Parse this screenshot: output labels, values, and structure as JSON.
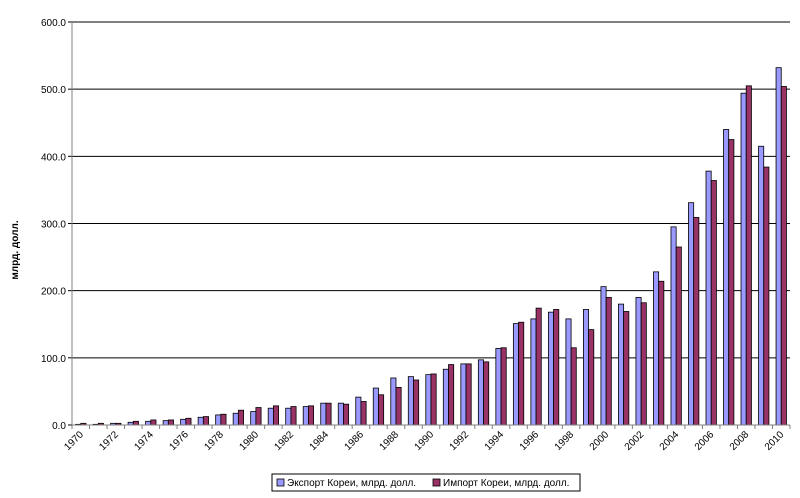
{
  "chart_data": {
    "type": "bar",
    "title": "",
    "xlabel": "",
    "ylabel": "млрд. долл.",
    "ylim": [
      0,
      600
    ],
    "yticks": [
      "0.0",
      "100.0",
      "200.0",
      "300.0",
      "400.0",
      "500.0",
      "600.0"
    ],
    "grid": true,
    "legend_position": "bottom",
    "categories": [
      1970,
      1971,
      1972,
      1973,
      1974,
      1975,
      1976,
      1977,
      1978,
      1979,
      1980,
      1981,
      1982,
      1983,
      1984,
      1985,
      1986,
      1987,
      1988,
      1989,
      1990,
      1991,
      1992,
      1993,
      1994,
      1995,
      1996,
      1997,
      1998,
      1999,
      2000,
      2001,
      2002,
      2003,
      2004,
      2005,
      2006,
      2007,
      2008,
      2009,
      2010
    ],
    "series": [
      {
        "name": "Экспорт Кореи, млрд. долл.",
        "color": "#9999FF",
        "values": [
          1,
          1,
          2.5,
          4,
          5.5,
          6.5,
          8.5,
          11.5,
          15,
          17.5,
          20,
          25,
          25,
          27.5,
          32.5,
          32.5,
          41.5,
          55,
          70,
          72,
          75,
          83,
          91,
          97,
          114,
          151,
          158,
          168,
          158,
          172,
          206,
          180,
          190,
          228,
          295,
          331,
          378,
          440,
          494,
          415,
          532
        ]
      },
      {
        "name": "Импорт Кореи, млрд. долл.",
        "color": "#993366",
        "values": [
          2.5,
          2.5,
          2.5,
          5.5,
          7.5,
          7.5,
          10,
          12.5,
          16,
          22,
          26,
          28.5,
          27.5,
          28.5,
          32.5,
          31,
          35,
          45,
          56,
          67,
          76,
          90,
          91,
          94,
          115,
          153,
          174,
          172,
          115,
          142,
          190,
          169,
          182,
          214,
          265,
          309,
          364,
          425,
          505,
          384,
          504
        ]
      }
    ]
  }
}
